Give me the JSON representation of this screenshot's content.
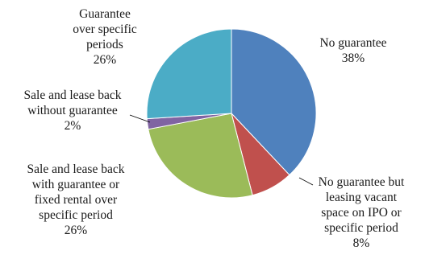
{
  "chart_data": {
    "type": "pie",
    "title": "",
    "slices": [
      {
        "label": [
          "No guarantee"
        ],
        "value_label": "38%",
        "value": 38,
        "color": "#4f81bd"
      },
      {
        "label": [
          "No guarantee but",
          "leasing vacant",
          "space on IPO or",
          "specific period"
        ],
        "value_label": "8%",
        "value": 8,
        "color": "#c0504d"
      },
      {
        "label": [
          "Sale and lease back",
          "with guarantee or",
          "fixed rental over",
          "specific period"
        ],
        "value_label": "26%",
        "value": 26,
        "color": "#9bbb59"
      },
      {
        "label": [
          "Sale and lease back",
          "without guarantee"
        ],
        "value_label": "2%",
        "value": 2,
        "color": "#8064a2"
      },
      {
        "label": [
          "Guarantee",
          "over specific",
          "periods"
        ],
        "value_label": "26%",
        "value": 26,
        "color": "#4bacc6"
      }
    ],
    "start_angle_deg": 0,
    "direction": "clockwise",
    "legend": "none",
    "data_labels": "outside"
  }
}
